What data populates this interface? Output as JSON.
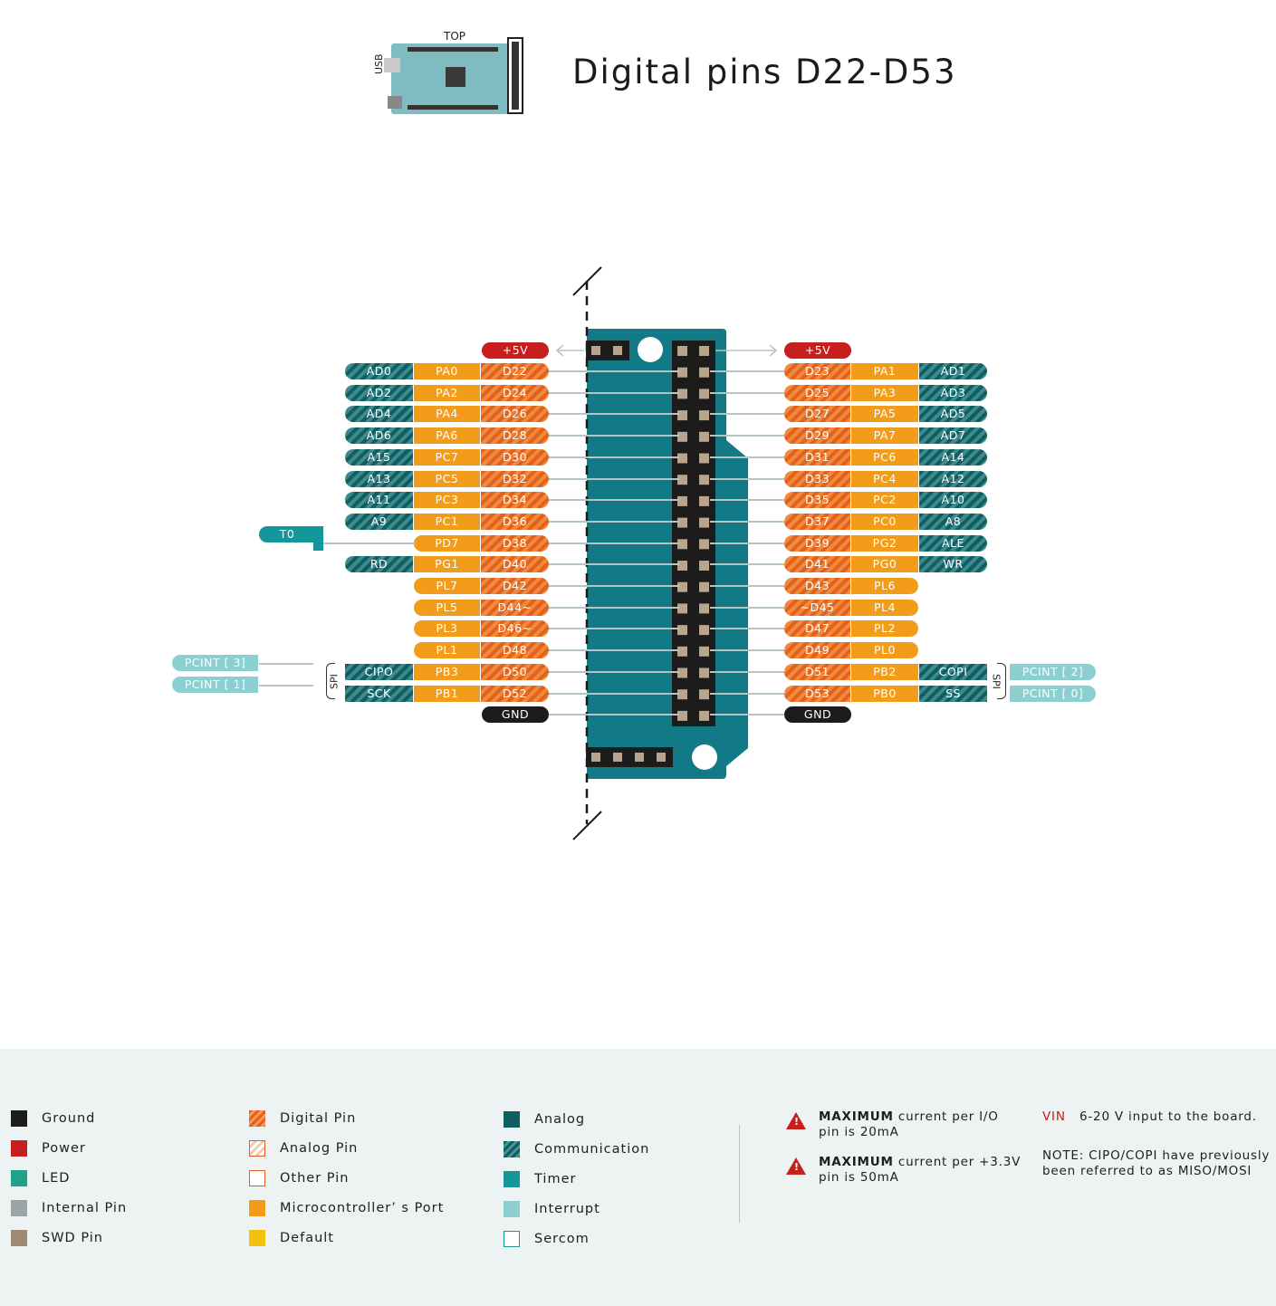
{
  "header": {
    "title": "Digital pins D22-D53",
    "thumb_top": "TOP",
    "thumb_usb": "USB"
  },
  "left_rows": [
    {
      "alt": "AD0",
      "port": "PA0",
      "pin": "D22"
    },
    {
      "alt": "AD2",
      "port": "PA2",
      "pin": "D24"
    },
    {
      "alt": "AD4",
      "port": "PA4",
      "pin": "D26"
    },
    {
      "alt": "AD6",
      "port": "PA6",
      "pin": "D28"
    },
    {
      "alt": "A15",
      "port": "PC7",
      "pin": "D30"
    },
    {
      "alt": "A13",
      "port": "PC5",
      "pin": "D32"
    },
    {
      "alt": "A11",
      "port": "PC3",
      "pin": "D34"
    },
    {
      "alt": "A9",
      "port": "PC1",
      "pin": "D36"
    },
    {
      "alt": "",
      "port": "PD7",
      "pin": "D38"
    },
    {
      "alt": "RD",
      "port": "PG1",
      "pin": "D40"
    },
    {
      "alt": "",
      "port": "PL7",
      "pin": "D42"
    },
    {
      "alt": "",
      "port": "PL5",
      "pin": "D44~"
    },
    {
      "alt": "",
      "port": "PL3",
      "pin": "D46~"
    },
    {
      "alt": "",
      "port": "PL1",
      "pin": "D48"
    },
    {
      "alt": "CIPO",
      "port": "PB3",
      "pin": "D50"
    },
    {
      "alt": "SCK",
      "port": "PB1",
      "pin": "D52"
    }
  ],
  "right_rows": [
    {
      "pin": "D23",
      "port": "PA1",
      "alt": "AD1"
    },
    {
      "pin": "D25",
      "port": "PA3",
      "alt": "AD3"
    },
    {
      "pin": "D27",
      "port": "PA5",
      "alt": "AD5"
    },
    {
      "pin": "D29",
      "port": "PA7",
      "alt": "AD7"
    },
    {
      "pin": "D31",
      "port": "PC6",
      "alt": "A14"
    },
    {
      "pin": "D33",
      "port": "PC4",
      "alt": "A12"
    },
    {
      "pin": "D35",
      "port": "PC2",
      "alt": "A10"
    },
    {
      "pin": "D37",
      "port": "PC0",
      "alt": "A8"
    },
    {
      "pin": "D39",
      "port": "PG2",
      "alt": "ALE"
    },
    {
      "pin": "D41",
      "port": "PG0",
      "alt": "WR"
    },
    {
      "pin": "D43",
      "port": "PL6",
      "alt": ""
    },
    {
      "pin": "~D45",
      "port": "PL4",
      "alt": ""
    },
    {
      "pin": "D47",
      "port": "PL2",
      "alt": ""
    },
    {
      "pin": "D49",
      "port": "PL0",
      "alt": ""
    },
    {
      "pin": "D51",
      "port": "PB2",
      "alt": "COPI"
    },
    {
      "pin": "D53",
      "port": "PB0",
      "alt": "SS"
    }
  ],
  "power": {
    "left": "+5V",
    "right": "+5V"
  },
  "ground": {
    "left": "GND",
    "right": "GND"
  },
  "timer": "T0",
  "spi_label": "SPI",
  "interrupts": {
    "left": [
      "PCINT [ 3]",
      "PCINT [ 1]"
    ],
    "right": [
      "PCINT [ 2]",
      "PCINT [ 0]"
    ]
  },
  "legend": {
    "col1": [
      {
        "label": "Ground",
        "color": "#1c1c1c"
      },
      {
        "label": "Power",
        "color": "#c71e1e"
      },
      {
        "label": "LED",
        "color": "#1ea38a"
      },
      {
        "label": "Internal Pin",
        "color": "#9aa6a6"
      },
      {
        "label": "SWD Pin",
        "color": "#a08a72"
      }
    ],
    "col2": [
      {
        "label": "Digital Pin",
        "style": "hatched-orange"
      },
      {
        "label": "Analog Pin",
        "style": "outline-hatched"
      },
      {
        "label": "Other Pin",
        "style": "outline"
      },
      {
        "label": "Microcontroller’ s Port",
        "color": "#f39c1a"
      },
      {
        "label": "Default",
        "color": "#f2c20f"
      }
    ],
    "col3": [
      {
        "label": "Analog",
        "color": "#0f5f62"
      },
      {
        "label": "Communication",
        "style": "hatched-teal"
      },
      {
        "label": "Timer",
        "color": "#13979a"
      },
      {
        "label": "Interrupt",
        "color": "#8ccfd0"
      },
      {
        "label": "Sercom",
        "style": "outline-teal"
      }
    ],
    "warnings": [
      {
        "bold": "MAXIMUM",
        "text": " current per I/O",
        "line2": "pin is 20mA"
      },
      {
        "bold": "MAXIMUM",
        "text": " current per +3.3V",
        "line2": "pin is 50mA"
      }
    ],
    "vin_label": "VIN",
    "vin_text": "6-20 V input to the board.",
    "note_line1": "NOTE: CIPO/COPI have previously",
    "note_line2": "been referred to as MISO/MOSI"
  }
}
